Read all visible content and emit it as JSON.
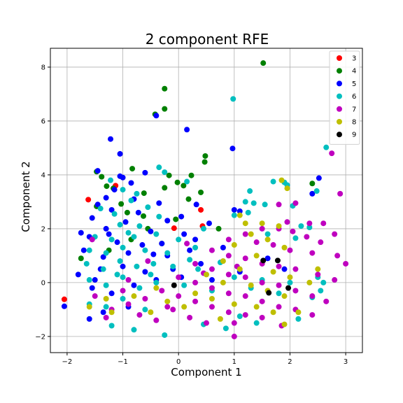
{
  "chart_data": {
    "type": "scatter",
    "title": "2 component RFE",
    "xlabel": "Component 1",
    "ylabel": "Component 2",
    "xlim": [
      -2.3,
      3.3
    ],
    "ylim": [
      -2.6,
      8.7
    ],
    "xticks": [
      -2,
      -1,
      0,
      1,
      2,
      3
    ],
    "yticks": [
      -2,
      0,
      2,
      4,
      6,
      8
    ],
    "grid": true,
    "legend_position": "top-right",
    "series": [
      {
        "name": "3",
        "color": "#ff0000",
        "points": [
          [
            -2.05,
            -0.62
          ],
          [
            -1.62,
            3.08
          ],
          [
            -1.13,
            3.6
          ],
          [
            0.4,
            2.7
          ],
          [
            0.43,
            2.1
          ],
          [
            -0.08,
            2.02
          ]
        ]
      },
      {
        "name": "4",
        "color": "#008000",
        "points": [
          [
            1.52,
            8.15
          ],
          [
            -0.25,
            7.2
          ],
          [
            -0.25,
            6.45
          ],
          [
            -0.42,
            6.25
          ],
          [
            0.48,
            4.7
          ],
          [
            0.47,
            4.48
          ],
          [
            -0.17,
            3.98
          ],
          [
            0.23,
            3.98
          ],
          [
            -0.83,
            4.23
          ],
          [
            -1.47,
            4.12
          ],
          [
            -1.38,
            3.93
          ],
          [
            -0.02,
            3.72
          ],
          [
            0.09,
            3.6
          ],
          [
            -1.29,
            3.58
          ],
          [
            -1.17,
            3.5
          ],
          [
            -0.25,
            3.52
          ],
          [
            0.4,
            3.35
          ],
          [
            0.18,
            3.1
          ],
          [
            -0.62,
            3.32
          ],
          [
            -1.47,
            2.83
          ],
          [
            -1.03,
            2.92
          ],
          [
            -0.92,
            2.6
          ],
          [
            -0.63,
            2.47
          ],
          [
            -0.55,
            2.0
          ],
          [
            -1.75,
            0.9
          ],
          [
            -1.25,
            1.2
          ],
          [
            -0.85,
            1.6
          ],
          [
            -0.3,
            1.45
          ],
          [
            0.72,
            2.0
          ],
          [
            2.4,
            3.68
          ],
          [
            -0.05,
            2.35
          ]
        ]
      },
      {
        "name": "5",
        "color": "#0000ff",
        "points": [
          [
            -0.4,
            6.2
          ],
          [
            0.15,
            5.68
          ],
          [
            -1.22,
            5.33
          ],
          [
            0.97,
            4.98
          ],
          [
            -1.05,
            4.78
          ],
          [
            -0.6,
            4.08
          ],
          [
            -1.45,
            4.15
          ],
          [
            -1.0,
            3.9
          ],
          [
            -0.85,
            3.7
          ],
          [
            -1.15,
            3.45
          ],
          [
            2.52,
            3.88
          ],
          [
            2.4,
            3.3
          ],
          [
            -1.3,
            3.15
          ],
          [
            -0.35,
            2.95
          ],
          [
            0.32,
            2.9
          ],
          [
            -1.2,
            2.7
          ],
          [
            -0.72,
            2.6
          ],
          [
            1.0,
            2.7
          ],
          [
            1.1,
            2.65
          ],
          [
            -1.55,
            2.4
          ],
          [
            -0.95,
            2.25
          ],
          [
            -0.2,
            2.3
          ],
          [
            0.55,
            2.2
          ],
          [
            -1.3,
            2.0
          ],
          [
            -0.5,
            1.9
          ],
          [
            0.1,
            1.8
          ],
          [
            -1.6,
            1.7
          ],
          [
            -1.1,
            1.5
          ],
          [
            -0.3,
            1.45
          ],
          [
            0.3,
            1.6
          ],
          [
            -1.7,
            1.2
          ],
          [
            -1.35,
            0.95
          ],
          [
            -0.9,
            1.1
          ],
          [
            -0.45,
            1.05
          ],
          [
            0.2,
            1.2
          ],
          [
            0.8,
            1.3
          ],
          [
            -1.8,
            0.3
          ],
          [
            -1.4,
            0.5
          ],
          [
            -1.0,
            0.6
          ],
          [
            -0.6,
            0.4
          ],
          [
            -0.1,
            0.5
          ],
          [
            0.4,
            0.7
          ],
          [
            1.1,
            0.4
          ],
          [
            -1.55,
            -0.2
          ],
          [
            -1.2,
            -0.4
          ],
          [
            -0.8,
            -0.1
          ],
          [
            -0.4,
            0.1
          ],
          [
            0.6,
            0.1
          ],
          [
            -1.6,
            -1.35
          ],
          [
            -2.05,
            -0.88
          ],
          [
            -1.35,
            -1.1
          ],
          [
            -0.9,
            -0.9
          ],
          [
            -1.75,
            1.85
          ],
          [
            -1.45,
            2.9
          ],
          [
            -0.8,
            3.1
          ],
          [
            0.05,
            2.45
          ],
          [
            1.6,
            0.9
          ],
          [
            1.9,
            0.5
          ],
          [
            -0.2,
            1.0
          ],
          [
            0.05,
            0.2
          ],
          [
            -0.65,
            1.4
          ],
          [
            -1.25,
            1.8
          ],
          [
            -1.05,
            3.95
          ],
          [
            -1.5,
            0.1
          ]
        ]
      },
      {
        "name": "6",
        "color": "#00bfbf",
        "points": [
          [
            0.98,
            6.82
          ],
          [
            2.65,
            5.02
          ],
          [
            -0.35,
            4.28
          ],
          [
            -0.25,
            4.1
          ],
          [
            0.15,
            3.75
          ],
          [
            1.28,
            3.4
          ],
          [
            2.48,
            3.4
          ],
          [
            1.95,
            3.62
          ],
          [
            1.9,
            3.72
          ],
          [
            1.7,
            3.75
          ],
          [
            -0.75,
            3.3
          ],
          [
            -1.0,
            3.45
          ],
          [
            -1.22,
            3.8
          ],
          [
            1.2,
            3.0
          ],
          [
            1.35,
            2.95
          ],
          [
            1.55,
            2.9
          ],
          [
            -0.55,
            2.8
          ],
          [
            -0.85,
            3.05
          ],
          [
            -1.15,
            2.55
          ],
          [
            -1.4,
            2.75
          ],
          [
            2.05,
            2.85
          ],
          [
            -0.35,
            2.45
          ],
          [
            1.0,
            2.5
          ],
          [
            1.25,
            2.6
          ],
          [
            2.2,
            2.1
          ],
          [
            2.35,
            2.05
          ],
          [
            -0.7,
            2.1
          ],
          [
            -1.05,
            2.15
          ],
          [
            0.45,
            2.0
          ],
          [
            -1.5,
            1.7
          ],
          [
            -1.2,
            1.6
          ],
          [
            -0.8,
            1.7
          ],
          [
            -0.4,
            1.8
          ],
          [
            0.0,
            1.6
          ],
          [
            1.6,
            1.8
          ],
          [
            2.1,
            1.65
          ],
          [
            -1.6,
            1.2
          ],
          [
            -1.3,
            1.1
          ],
          [
            -1.0,
            1.3
          ],
          [
            -0.6,
            1.2
          ],
          [
            -0.2,
            1.1
          ],
          [
            0.3,
            1.3
          ],
          [
            -1.65,
            0.7
          ],
          [
            -1.35,
            0.5
          ],
          [
            -1.05,
            0.8
          ],
          [
            -0.75,
            0.6
          ],
          [
            -0.45,
            0.7
          ],
          [
            -0.1,
            0.6
          ],
          [
            0.35,
            0.5
          ],
          [
            1.0,
            0.2
          ],
          [
            1.5,
            0.1
          ],
          [
            2.0,
            0.0
          ],
          [
            2.5,
            0.2
          ],
          [
            -1.6,
            0.1
          ],
          [
            -1.3,
            -0.1
          ],
          [
            -1.0,
            0.2
          ],
          [
            -0.7,
            -0.2
          ],
          [
            -0.4,
            0.0
          ],
          [
            0.1,
            -0.1
          ],
          [
            0.6,
            -0.3
          ],
          [
            1.3,
            -0.2
          ],
          [
            1.8,
            -0.4
          ],
          [
            2.6,
            0.0
          ],
          [
            2.15,
            -1.35
          ],
          [
            -1.6,
            -0.8
          ],
          [
            -1.3,
            -0.9
          ],
          [
            -1.0,
            -0.6
          ],
          [
            -0.6,
            -1.0
          ],
          [
            -0.25,
            -1.95
          ],
          [
            -0.8,
            -1.75
          ],
          [
            -1.2,
            -1.6
          ],
          [
            1.4,
            -1.5
          ],
          [
            1.1,
            -1.25
          ],
          [
            2.4,
            -0.55
          ],
          [
            2.55,
            -0.3
          ],
          [
            0.45,
            -1.55
          ],
          [
            0.85,
            -1.7
          ],
          [
            -0.9,
            1.85
          ],
          [
            0.2,
            0.85
          ],
          [
            -0.5,
            0.3
          ],
          [
            -1.1,
            0.3
          ],
          [
            0.75,
            0.75
          ]
        ]
      },
      {
        "name": "7",
        "color": "#bf00bf",
        "points": [
          [
            2.75,
            4.8
          ],
          [
            2.9,
            3.3
          ],
          [
            2.1,
            2.95
          ],
          [
            1.8,
            2.9
          ],
          [
            2.35,
            2.2
          ],
          [
            2.6,
            2.2
          ],
          [
            2.8,
            1.8
          ],
          [
            1.5,
            2.0
          ],
          [
            1.8,
            2.0
          ],
          [
            2.05,
            1.9
          ],
          [
            2.3,
            1.7
          ],
          [
            2.55,
            1.5
          ],
          [
            1.2,
            1.8
          ],
          [
            0.9,
            1.6
          ],
          [
            1.4,
            1.5
          ],
          [
            1.7,
            1.4
          ],
          [
            2.0,
            1.2
          ],
          [
            2.4,
            1.1
          ],
          [
            2.85,
            1.0
          ],
          [
            3.0,
            0.7
          ],
          [
            0.6,
            1.2
          ],
          [
            0.9,
            1.0
          ],
          [
            1.2,
            0.9
          ],
          [
            1.5,
            0.7
          ],
          [
            1.8,
            0.6
          ],
          [
            2.1,
            0.5
          ],
          [
            2.5,
            0.3
          ],
          [
            2.8,
            0.1
          ],
          [
            0.3,
            0.7
          ],
          [
            0.6,
            0.5
          ],
          [
            0.9,
            0.3
          ],
          [
            1.2,
            0.2
          ],
          [
            1.5,
            0.0
          ],
          [
            1.8,
            -0.1
          ],
          [
            2.1,
            -0.3
          ],
          [
            2.4,
            -0.5
          ],
          [
            2.65,
            -0.7
          ],
          [
            0.0,
            0.2
          ],
          [
            0.3,
            0.0
          ],
          [
            0.6,
            -0.2
          ],
          [
            0.9,
            -0.4
          ],
          [
            1.2,
            -0.5
          ],
          [
            1.5,
            -0.7
          ],
          [
            1.8,
            -0.9
          ],
          [
            2.1,
            -1.0
          ],
          [
            2.4,
            -1.2
          ],
          [
            -0.3,
            -0.3
          ],
          [
            0.0,
            -0.5
          ],
          [
            0.3,
            -0.7
          ],
          [
            0.6,
            -0.9
          ],
          [
            0.9,
            -1.1
          ],
          [
            1.2,
            -1.2
          ],
          [
            1.5,
            -1.3
          ],
          [
            1.85,
            -1.6
          ],
          [
            -0.6,
            -0.6
          ],
          [
            -0.9,
            -0.8
          ],
          [
            -1.2,
            -1.0
          ],
          [
            -1.5,
            -0.5
          ],
          [
            -1.0,
            -0.3
          ],
          [
            -0.7,
            -1.2
          ],
          [
            -0.4,
            -1.4
          ],
          [
            -0.1,
            -1.0
          ],
          [
            0.2,
            -1.3
          ],
          [
            0.5,
            -1.5
          ],
          [
            1.0,
            -1.5
          ],
          [
            1.0,
            -2.0
          ],
          [
            -1.3,
            -1.3
          ],
          [
            -0.2,
            -0.9
          ],
          [
            0.45,
            0.35
          ],
          [
            1.05,
            0.6
          ],
          [
            0.15,
            1.45
          ],
          [
            -1.55,
            1.6
          ],
          [
            -0.55,
            0.8
          ],
          [
            -0.9,
            0.1
          ],
          [
            1.95,
            2.25
          ]
        ]
      },
      {
        "name": "8",
        "color": "#bfbf00",
        "points": [
          [
            1.85,
            3.8
          ],
          [
            1.95,
            3.5
          ],
          [
            1.1,
            2.5
          ],
          [
            1.2,
            2.2
          ],
          [
            1.5,
            2.2
          ],
          [
            1.8,
            2.1
          ],
          [
            1.3,
            1.8
          ],
          [
            1.6,
            1.6
          ],
          [
            1.0,
            1.4
          ],
          [
            1.9,
            1.3
          ],
          [
            1.4,
            1.0
          ],
          [
            0.8,
            0.8
          ],
          [
            1.1,
            0.5
          ],
          [
            1.7,
            0.4
          ],
          [
            2.0,
            0.2
          ],
          [
            0.5,
            0.3
          ],
          [
            0.8,
            0.0
          ],
          [
            1.3,
            -0.1
          ],
          [
            1.6,
            -0.3
          ],
          [
            1.9,
            -0.5
          ],
          [
            0.3,
            -0.4
          ],
          [
            0.6,
            -0.6
          ],
          [
            1.0,
            -0.8
          ],
          [
            1.4,
            -0.9
          ],
          [
            1.7,
            -1.1
          ],
          [
            -0.2,
            -0.7
          ],
          [
            0.1,
            -0.9
          ],
          [
            -0.5,
            -1.1
          ],
          [
            -1.3,
            -0.6
          ],
          [
            -1.6,
            -0.9
          ],
          [
            -1.2,
            -1.1
          ],
          [
            -0.8,
            -0.5
          ],
          [
            1.9,
            -1.55
          ],
          [
            2.15,
            -1.1
          ],
          [
            2.5,
            0.5
          ],
          [
            2.35,
            0.0
          ],
          [
            -0.4,
            -0.2
          ],
          [
            0.75,
            -1.35
          ]
        ]
      },
      {
        "name": "9",
        "color": "#000000",
        "points": [
          [
            1.52,
            0.82
          ],
          [
            1.78,
            0.82
          ],
          [
            -0.08,
            -0.1
          ],
          [
            1.62,
            -0.38
          ],
          [
            1.97,
            -0.2
          ]
        ]
      }
    ]
  }
}
